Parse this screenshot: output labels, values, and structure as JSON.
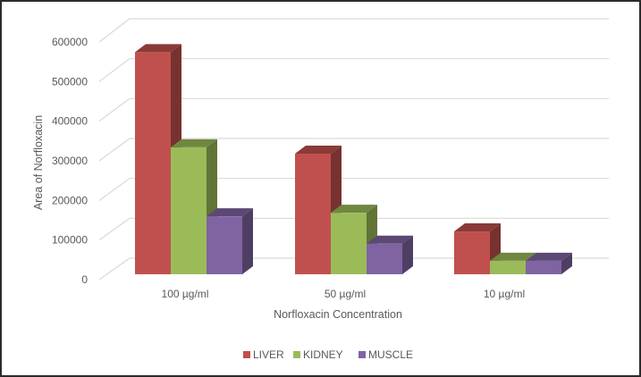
{
  "chart_data": {
    "type": "bar",
    "variant": "3d-clustered-column",
    "title": "",
    "xlabel": "Norfloxacin Concentration",
    "ylabel": "Area of Norfloxacin",
    "categories": [
      "100 µg/ml",
      "50 µg/ml",
      "10 µg/ml"
    ],
    "series": [
      {
        "name": "LIVER",
        "color": "#c0504d",
        "values": [
          560000,
          304000,
          108000
        ]
      },
      {
        "name": "KIDNEY",
        "color": "#9bbb59",
        "values": [
          320000,
          155000,
          34000
        ]
      },
      {
        "name": "MUSCLE",
        "color": "#8064a2",
        "values": [
          146000,
          77000,
          34000
        ]
      }
    ],
    "ylim": [
      0,
      600000
    ],
    "yticks": [
      "0",
      "100000",
      "200000",
      "300000",
      "400000",
      "500000",
      "600000"
    ],
    "grid": true,
    "legend_position": "bottom"
  }
}
